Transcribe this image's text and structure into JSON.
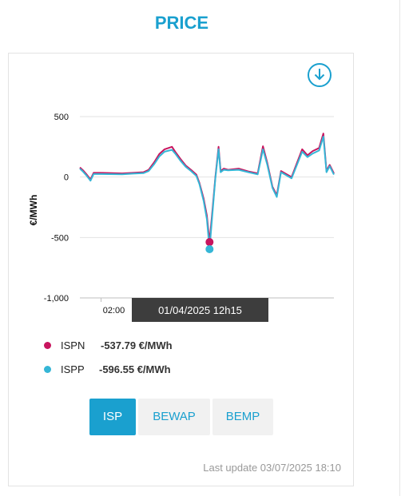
{
  "page": {
    "title": "PRICE"
  },
  "icons": {
    "download": "download-circle-icon"
  },
  "colors": {
    "accent": "#1aa0cf",
    "ispn": "#c8155e",
    "ispp": "#35b6d6"
  },
  "chart_data": {
    "type": "line",
    "ylabel": "€/MWh",
    "xlabel": "",
    "ylim": [
      -1000,
      600
    ],
    "y_ticks": [
      {
        "value": 500,
        "label": "500"
      },
      {
        "value": 0,
        "label": "0"
      },
      {
        "value": -500,
        "label": "-500"
      },
      {
        "value": -1000,
        "label": "-1,000"
      }
    ],
    "x_ticks": [
      {
        "value": 2.0,
        "label": "02:00"
      }
    ],
    "x_range": [
      0,
      24
    ],
    "grid": true,
    "tooltip": {
      "label": "01/04/2025 12h15",
      "x": 12.25
    },
    "series": [
      {
        "name": "ISPN",
        "color": "#c8155e",
        "points": [
          [
            0,
            80
          ],
          [
            0.3,
            55
          ],
          [
            0.6,
            25
          ],
          [
            1.0,
            -20
          ],
          [
            1.3,
            35
          ],
          [
            2,
            35
          ],
          [
            4,
            30
          ],
          [
            5,
            35
          ],
          [
            6,
            40
          ],
          [
            6.5,
            60
          ],
          [
            7,
            120
          ],
          [
            7.5,
            190
          ],
          [
            8,
            230
          ],
          [
            8.7,
            250
          ],
          [
            9,
            210
          ],
          [
            9.5,
            150
          ],
          [
            10,
            95
          ],
          [
            10.5,
            60
          ],
          [
            11,
            20
          ],
          [
            11.3,
            -50
          ],
          [
            11.7,
            -180
          ],
          [
            12,
            -320
          ],
          [
            12.25,
            -537.79
          ],
          [
            12.5,
            -300
          ],
          [
            12.8,
            0
          ],
          [
            13.1,
            250
          ],
          [
            13.3,
            50
          ],
          [
            13.6,
            70
          ],
          [
            14,
            60
          ],
          [
            15,
            70
          ],
          [
            16,
            45
          ],
          [
            16.8,
            30
          ],
          [
            17.3,
            255
          ],
          [
            17.7,
            120
          ],
          [
            18.2,
            -80
          ],
          [
            18.6,
            -150
          ],
          [
            19,
            50
          ],
          [
            20,
            0
          ],
          [
            21,
            230
          ],
          [
            21.5,
            180
          ],
          [
            22,
            215
          ],
          [
            22.6,
            240
          ],
          [
            23,
            360
          ],
          [
            23.3,
            50
          ],
          [
            23.6,
            100
          ],
          [
            24,
            30
          ]
        ]
      },
      {
        "name": "ISPP",
        "color": "#35b6d6",
        "points": [
          [
            0,
            70
          ],
          [
            0.3,
            45
          ],
          [
            0.6,
            15
          ],
          [
            1.0,
            -30
          ],
          [
            1.3,
            25
          ],
          [
            2,
            25
          ],
          [
            4,
            22
          ],
          [
            5,
            28
          ],
          [
            6,
            32
          ],
          [
            6.5,
            50
          ],
          [
            7,
            105
          ],
          [
            7.5,
            170
          ],
          [
            8,
            210
          ],
          [
            8.7,
            225
          ],
          [
            9,
            195
          ],
          [
            9.5,
            135
          ],
          [
            10,
            85
          ],
          [
            10.5,
            50
          ],
          [
            11,
            10
          ],
          [
            11.3,
            -60
          ],
          [
            11.7,
            -200
          ],
          [
            12,
            -350
          ],
          [
            12.25,
            -596.55
          ],
          [
            12.5,
            -330
          ],
          [
            12.8,
            -10
          ],
          [
            13.1,
            230
          ],
          [
            13.3,
            40
          ],
          [
            13.6,
            60
          ],
          [
            14,
            55
          ],
          [
            15,
            60
          ],
          [
            16,
            38
          ],
          [
            16.8,
            22
          ],
          [
            17.3,
            230
          ],
          [
            17.7,
            105
          ],
          [
            18.2,
            -90
          ],
          [
            18.6,
            -165
          ],
          [
            19,
            40
          ],
          [
            20,
            -10
          ],
          [
            21,
            210
          ],
          [
            21.5,
            165
          ],
          [
            22,
            195
          ],
          [
            22.6,
            220
          ],
          [
            23,
            335
          ],
          [
            23.3,
            40
          ],
          [
            23.6,
            90
          ],
          [
            24,
            20
          ]
        ]
      }
    ]
  },
  "legend": [
    {
      "name": "ISPN",
      "value": "-537.79 €/MWh"
    },
    {
      "name": "ISPP",
      "value": "-596.55 €/MWh"
    }
  ],
  "tabs": [
    {
      "label": "ISP",
      "active": true
    },
    {
      "label": "BEWAP",
      "active": false
    },
    {
      "label": "BEMP",
      "active": false
    }
  ],
  "footer": {
    "last_update": "Last update 03/07/2025 18:10"
  }
}
